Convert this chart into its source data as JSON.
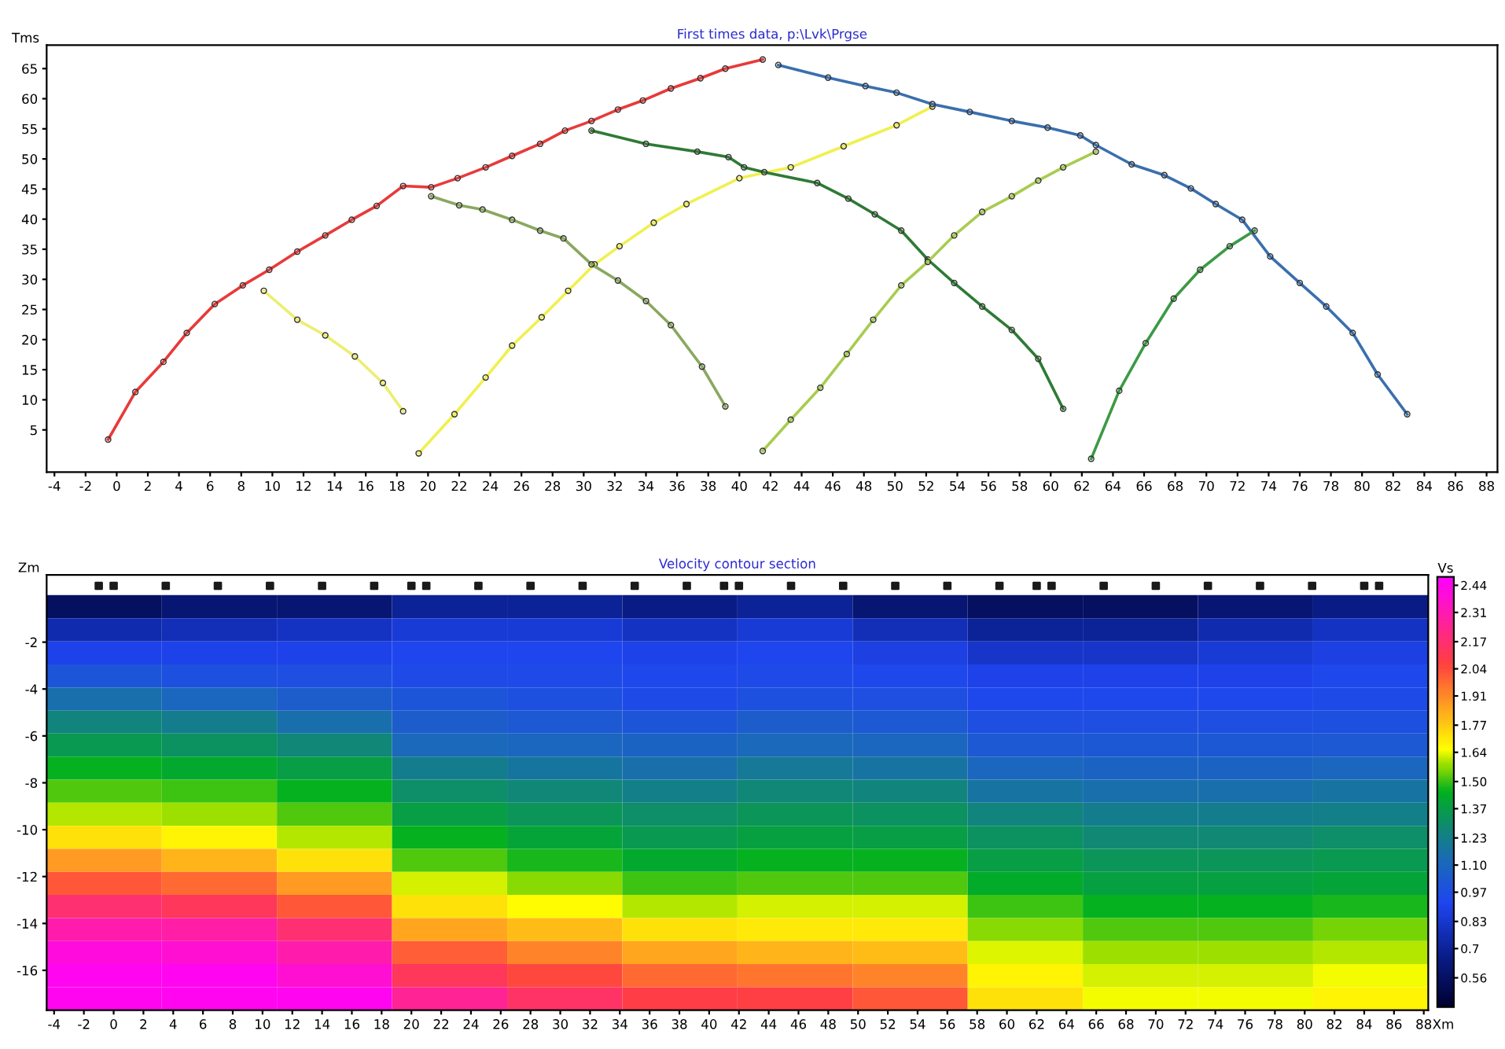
{
  "chart_data": [
    {
      "type": "line",
      "title": "First times data, p:\\Lvk\\Prgse",
      "ylabel": "Tms",
      "xlim": [
        -4.5,
        88.7
      ],
      "ylim": [
        -2,
        68.9
      ],
      "xticks": [
        -4,
        -2,
        0,
        2,
        4,
        6,
        8,
        10,
        12,
        14,
        16,
        18,
        20,
        22,
        24,
        26,
        28,
        30,
        32,
        34,
        36,
        38,
        40,
        42,
        44,
        46,
        48,
        50,
        52,
        54,
        56,
        58,
        60,
        62,
        64,
        66,
        68,
        70,
        72,
        74,
        76,
        78,
        80,
        82,
        84,
        86,
        88
      ],
      "yticks": [
        5,
        10,
        15,
        20,
        25,
        30,
        35,
        40,
        45,
        50,
        55,
        60,
        65
      ],
      "grid": false,
      "legend": false,
      "marker": "circle",
      "line_style": "solid",
      "series": [
        {
          "color": "#e83a3a",
          "x": [
            -0.55,
            1.2,
            3.0,
            4.5,
            6.3,
            8.1,
            9.8,
            11.6,
            13.4,
            15.1,
            16.7,
            18.4,
            20.2,
            21.9,
            23.7,
            25.4,
            27.2,
            28.8,
            30.5,
            32.2,
            33.8,
            35.6,
            37.5,
            39.1,
            41.5
          ],
          "values": [
            3.4,
            11.3,
            16.3,
            21.1,
            25.9,
            29.0,
            31.6,
            34.6,
            37.3,
            39.9,
            42.2,
            45.5,
            45.3,
            46.8,
            48.6,
            50.5,
            52.5,
            54.7,
            56.3,
            58.2,
            59.7,
            61.7,
            63.4,
            65.0,
            66.5
          ]
        },
        {
          "color": "#ecee70",
          "x": [
            9.45,
            11.6,
            13.4,
            15.3,
            17.1,
            18.4
          ],
          "values": [
            28.1,
            23.3,
            20.7,
            17.2,
            12.8,
            8.1
          ]
        },
        {
          "color": "#f0f050",
          "x": [
            19.4,
            21.7,
            23.7,
            25.4,
            27.3,
            29.0,
            30.7,
            32.3,
            34.5,
            36.6,
            40.0,
            43.3,
            46.7,
            50.1,
            52.4
          ],
          "values": [
            1.1,
            7.6,
            13.7,
            19.0,
            23.7,
            28.1,
            32.5,
            35.5,
            39.4,
            42.5,
            46.8,
            48.6,
            52.1,
            55.6,
            58.7
          ]
        },
        {
          "color": "#8aa860",
          "x": [
            20.2,
            22.0,
            23.5,
            25.4,
            27.2,
            28.7,
            30.5,
            32.2,
            34.0,
            35.6,
            37.6,
            39.1
          ],
          "values": [
            43.8,
            42.3,
            41.6,
            39.9,
            38.1,
            36.8,
            32.5,
            29.8,
            26.4,
            22.4,
            15.5,
            8.9
          ]
        },
        {
          "color": "#2f7a35",
          "x": [
            30.5,
            34.0,
            37.3,
            39.3,
            40.3,
            41.6,
            45.0,
            47.0,
            48.7,
            50.4,
            52.1,
            53.8,
            55.6,
            57.5,
            59.2,
            60.8
          ],
          "values": [
            54.7,
            52.5,
            51.2,
            50.3,
            48.6,
            47.8,
            46.0,
            43.4,
            40.8,
            38.1,
            33.3,
            29.4,
            25.5,
            21.6,
            16.8,
            8.5
          ]
        },
        {
          "color": "#a8cc50",
          "x": [
            41.5,
            43.3,
            45.2,
            46.9,
            48.6,
            50.4,
            52.1,
            53.8,
            55.6,
            57.5,
            59.2,
            60.8,
            62.9
          ],
          "values": [
            1.5,
            6.7,
            12.0,
            17.6,
            23.3,
            29.0,
            32.9,
            37.3,
            41.2,
            43.8,
            46.4,
            48.6,
            51.2
          ]
        },
        {
          "color": "#3a6fae",
          "x": [
            42.5,
            45.7,
            48.1,
            50.1,
            52.4,
            54.8,
            57.5,
            59.8,
            61.9,
            62.9,
            65.2,
            67.3,
            69.0,
            70.6,
            72.3,
            74.1,
            76.0,
            77.7,
            79.4,
            81.0,
            82.9
          ],
          "values": [
            65.6,
            63.5,
            62.1,
            61.0,
            59.1,
            57.8,
            56.3,
            55.2,
            53.9,
            52.3,
            49.1,
            47.3,
            45.1,
            42.5,
            39.9,
            33.8,
            29.4,
            25.5,
            21.1,
            14.2,
            7.6
          ]
        },
        {
          "color": "#3c9a45",
          "x": [
            62.6,
            64.4,
            66.1,
            67.9,
            69.6,
            71.5,
            73.1
          ],
          "values": [
            0.2,
            11.5,
            19.4,
            26.8,
            31.6,
            35.5,
            38.1
          ]
        }
      ]
    },
    {
      "type": "heatmap",
      "title": "Velocity contour section",
      "ylabel": "Zm",
      "xlabel": "Xm",
      "clabel": "Vs",
      "xlim": [
        -4.5,
        88.3
      ],
      "ylim": [
        -17.7,
        0.87
      ],
      "xticks": [
        -4,
        -2,
        0,
        2,
        4,
        6,
        8,
        10,
        12,
        14,
        16,
        18,
        20,
        22,
        24,
        26,
        28,
        30,
        32,
        34,
        36,
        38,
        40,
        42,
        44,
        46,
        48,
        50,
        52,
        54,
        56,
        58,
        60,
        62,
        64,
        66,
        68,
        70,
        72,
        74,
        76,
        78,
        80,
        82,
        84,
        86,
        88
      ],
      "yticks": [
        -2,
        -4,
        -6,
        -8,
        -10,
        -12,
        -14,
        -16
      ],
      "clim": [
        0.42,
        2.48
      ],
      "cticks": [
        0.56,
        0.7,
        0.83,
        0.97,
        {
          "value": 1.1,
          "label": "1.10"
        },
        1.23,
        1.37,
        {
          "value": 1.5,
          "label": "1.50"
        },
        1.64,
        1.77,
        1.91,
        2.04,
        2.17,
        2.31,
        2.44
      ],
      "x": [
        -0.63,
        7.1,
        14.83,
        22.57,
        30.3,
        38.03,
        45.77,
        53.5,
        61.23,
        68.97,
        76.7,
        84.43
      ],
      "y": [
        -0.49,
        -1.48,
        -2.46,
        -3.44,
        -4.43,
        -5.41,
        -6.39,
        -7.38,
        -8.36,
        -9.34,
        -10.33,
        -11.31,
        -12.29,
        -13.28,
        -14.26,
        -15.24,
        -16.23,
        -17.21
      ],
      "cells": [
        [
          0.55,
          0.6,
          0.6,
          0.7,
          0.7,
          0.65,
          0.7,
          0.6,
          0.55,
          0.55,
          0.6,
          0.65
        ],
        [
          0.75,
          0.78,
          0.8,
          0.85,
          0.85,
          0.8,
          0.85,
          0.78,
          0.7,
          0.7,
          0.75,
          0.8
        ],
        [
          0.9,
          0.9,
          0.9,
          0.92,
          0.92,
          0.9,
          0.92,
          0.88,
          0.82,
          0.82,
          0.85,
          0.88
        ],
        [
          1.0,
          0.98,
          0.97,
          0.95,
          0.95,
          0.93,
          0.95,
          0.93,
          0.9,
          0.9,
          0.9,
          0.93
        ],
        [
          1.15,
          1.1,
          1.05,
          1.0,
          0.98,
          0.95,
          0.98,
          0.97,
          0.93,
          0.93,
          0.93,
          0.95
        ],
        [
          1.25,
          1.22,
          1.15,
          1.05,
          1.03,
          1.0,
          1.05,
          1.03,
          0.97,
          0.97,
          0.97,
          0.98
        ],
        [
          1.35,
          1.32,
          1.27,
          1.12,
          1.1,
          1.08,
          1.12,
          1.1,
          1.03,
          1.02,
          1.02,
          1.03
        ],
        [
          1.45,
          1.42,
          1.37,
          1.22,
          1.18,
          1.15,
          1.2,
          1.17,
          1.1,
          1.08,
          1.08,
          1.1
        ],
        [
          1.52,
          1.5,
          1.45,
          1.3,
          1.27,
          1.23,
          1.27,
          1.25,
          1.17,
          1.15,
          1.15,
          1.17
        ],
        [
          1.6,
          1.58,
          1.52,
          1.37,
          1.33,
          1.3,
          1.33,
          1.32,
          1.25,
          1.22,
          1.22,
          1.23
        ],
        [
          1.72,
          1.68,
          1.6,
          1.45,
          1.4,
          1.35,
          1.38,
          1.37,
          1.32,
          1.28,
          1.28,
          1.3
        ],
        [
          1.87,
          1.82,
          1.72,
          1.52,
          1.47,
          1.42,
          1.45,
          1.45,
          1.37,
          1.33,
          1.33,
          1.35
        ],
        [
          2.02,
          1.98,
          1.87,
          1.62,
          1.57,
          1.5,
          1.52,
          1.52,
          1.43,
          1.38,
          1.38,
          1.4
        ],
        [
          2.17,
          2.12,
          2.02,
          1.72,
          1.66,
          1.6,
          1.62,
          1.62,
          1.5,
          1.45,
          1.45,
          1.47
        ],
        [
          2.3,
          2.28,
          2.17,
          1.85,
          1.8,
          1.72,
          1.7,
          1.7,
          1.57,
          1.52,
          1.52,
          1.55
        ],
        [
          2.4,
          2.38,
          2.3,
          2.0,
          1.92,
          1.85,
          1.82,
          1.8,
          1.63,
          1.58,
          1.58,
          1.6
        ],
        [
          2.44,
          2.44,
          2.38,
          2.12,
          2.05,
          1.98,
          1.95,
          1.92,
          1.68,
          1.62,
          1.62,
          1.65
        ],
        [
          2.44,
          2.44,
          2.44,
          2.25,
          2.15,
          2.08,
          2.07,
          2.02,
          1.72,
          1.65,
          1.65,
          1.68
        ]
      ],
      "series": [
        {
          "type": "scatter",
          "color": "#1a1a1a",
          "marker": "square",
          "x": [
            -1,
            0,
            3.5,
            7,
            10.5,
            14,
            17.5,
            20,
            21,
            24.5,
            28,
            31.5,
            35,
            38.5,
            41,
            42,
            45.5,
            49,
            52.5,
            56,
            59.5,
            62,
            63,
            66.5,
            70,
            73.5,
            77,
            80.5,
            84,
            85
          ],
          "values": [
            0.4,
            0.4,
            0.4,
            0.4,
            0.4,
            0.4,
            0.4,
            0.4,
            0.4,
            0.4,
            0.4,
            0.4,
            0.4,
            0.4,
            0.4,
            0.4,
            0.4,
            0.4,
            0.4,
            0.4,
            0.4,
            0.4,
            0.4,
            0.4,
            0.4,
            0.4,
            0.4,
            0.4,
            0.4,
            0.4
          ]
        }
      ]
    }
  ]
}
